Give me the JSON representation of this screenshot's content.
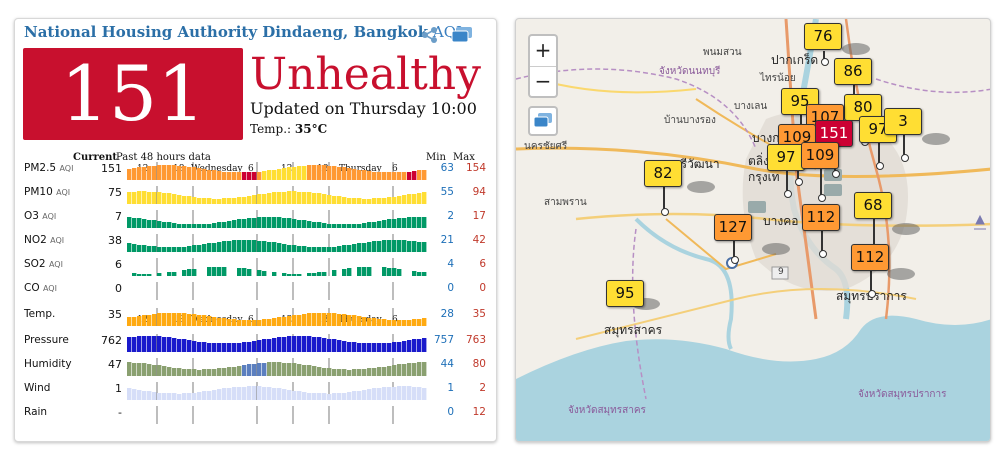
{
  "station": {
    "name": "National Housing Authority Dindaeng, Bangkok",
    "aqi_suffix": "AQI",
    "aqi_value": "151",
    "status": "Unhealthy",
    "updated": "Updated on Thursday 10:00",
    "temp_label": "Temp.:",
    "temp_value": "35°C",
    "colors": {
      "unhealthy": "#c8102e",
      "moderate": "#ffde33",
      "sensitive": "#ff9933"
    }
  },
  "table": {
    "current_header": "Current",
    "history_header": "Past 48 hours data",
    "min_header": "Min",
    "max_header": "Max",
    "time_ticks": [
      "12",
      "18",
      "Wednesday",
      "6",
      "12",
      "18",
      "Thursday",
      "6"
    ],
    "rows": [
      {
        "label": "PM2.5",
        "unit": "AQI",
        "current": "151",
        "min": "63",
        "max": "154"
      },
      {
        "label": "PM10",
        "unit": "AQI",
        "current": "75",
        "min": "55",
        "max": "94"
      },
      {
        "label": "O3",
        "unit": "AQI",
        "current": "7",
        "min": "2",
        "max": "17"
      },
      {
        "label": "NO2",
        "unit": "AQI",
        "current": "38",
        "min": "21",
        "max": "42"
      },
      {
        "label": "SO2",
        "unit": "AQI",
        "current": "6",
        "min": "4",
        "max": "6"
      },
      {
        "label": "CO",
        "unit": "AQI",
        "current": "0",
        "min": "0",
        "max": "0"
      },
      {
        "label": "Temp.",
        "unit": "",
        "current": "35",
        "min": "28",
        "max": "35"
      },
      {
        "label": "Pressure",
        "unit": "",
        "current": "762",
        "min": "757",
        "max": "763"
      },
      {
        "label": "Humidity",
        "unit": "",
        "current": "47",
        "min": "44",
        "max": "80"
      },
      {
        "label": "Wind",
        "unit": "",
        "current": "1",
        "min": "1",
        "max": "2"
      },
      {
        "label": "Rain",
        "unit": "",
        "current": "-",
        "min": "0",
        "max": "12"
      }
    ]
  },
  "icons": [
    "share-icon",
    "layers-icon"
  ],
  "map": {
    "zoom_in": "+",
    "zoom_out": "−",
    "place_labels": [
      "พนมสวน",
      "ปากเกร็ด",
      "จังหวัดนนทบุรี",
      "ไทรน้อย",
      "บางเลน",
      "บ้านบางรอง",
      "นครชัยศรี",
      "ศรีวัฒนา",
      "ตลิ่ง",
      "กรุงเท",
      "บางกอก",
      "สามพราน",
      "บางคอ",
      "สมุทรปราการ",
      "สมุทรสาคร",
      "จังหวัดสมุทรสาคร",
      "จังหวัดสมุทรปราการ",
      "9"
    ],
    "markers": [
      "76",
      "86",
      "95",
      "80",
      "107",
      "97",
      "3",
      "109",
      "151",
      "97",
      "109",
      "82",
      "112",
      "68",
      "127",
      "112",
      "95"
    ]
  }
}
